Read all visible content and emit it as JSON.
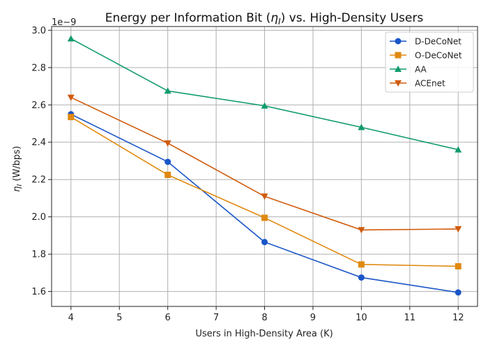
{
  "chart_data": {
    "type": "line",
    "title_main": "Energy per Information Bit (",
    "title_symbol": "η",
    "title_sub": "I",
    "title_tail": ") vs. High-Density Users",
    "xlabel": "Users in High-Density Area (K)",
    "ylabel_symbol": "η",
    "ylabel_sub": "I",
    "ylabel_unit": " (W/bps)",
    "y_scale_note": "1e−9",
    "x": [
      4,
      6,
      8,
      10,
      12
    ],
    "xlim": [
      3.6,
      12.4
    ],
    "ylim": [
      1.52,
      3.02
    ],
    "x_ticks": [
      4,
      5,
      6,
      7,
      8,
      9,
      10,
      11,
      12
    ],
    "y_ticks": [
      1.6,
      1.8,
      2.0,
      2.2,
      2.4,
      2.6,
      2.8,
      3.0
    ],
    "y_tick_labels": [
      "1.6",
      "1.8",
      "2.0",
      "2.2",
      "2.4",
      "2.6",
      "2.8",
      "3.0"
    ],
    "grid": true,
    "legend_position": "top-right",
    "series": [
      {
        "name": "D-DeCoNet",
        "color": "#1a56c8",
        "marker": "circle",
        "values": [
          2.55,
          2.295,
          1.865,
          1.675,
          1.595
        ]
      },
      {
        "name": "O-DeCoNet",
        "color": "#e08a10",
        "marker": "square",
        "values": [
          2.535,
          2.225,
          1.995,
          1.745,
          1.735
        ]
      },
      {
        "name": "AA",
        "color": "#119b6b",
        "marker": "triangle-up",
        "values": [
          2.955,
          2.675,
          2.595,
          2.48,
          2.36
        ]
      },
      {
        "name": "ACEnet",
        "color": "#d05a0a",
        "marker": "triangle-down",
        "values": [
          2.64,
          2.395,
          2.11,
          1.93,
          1.935
        ]
      }
    ]
  }
}
